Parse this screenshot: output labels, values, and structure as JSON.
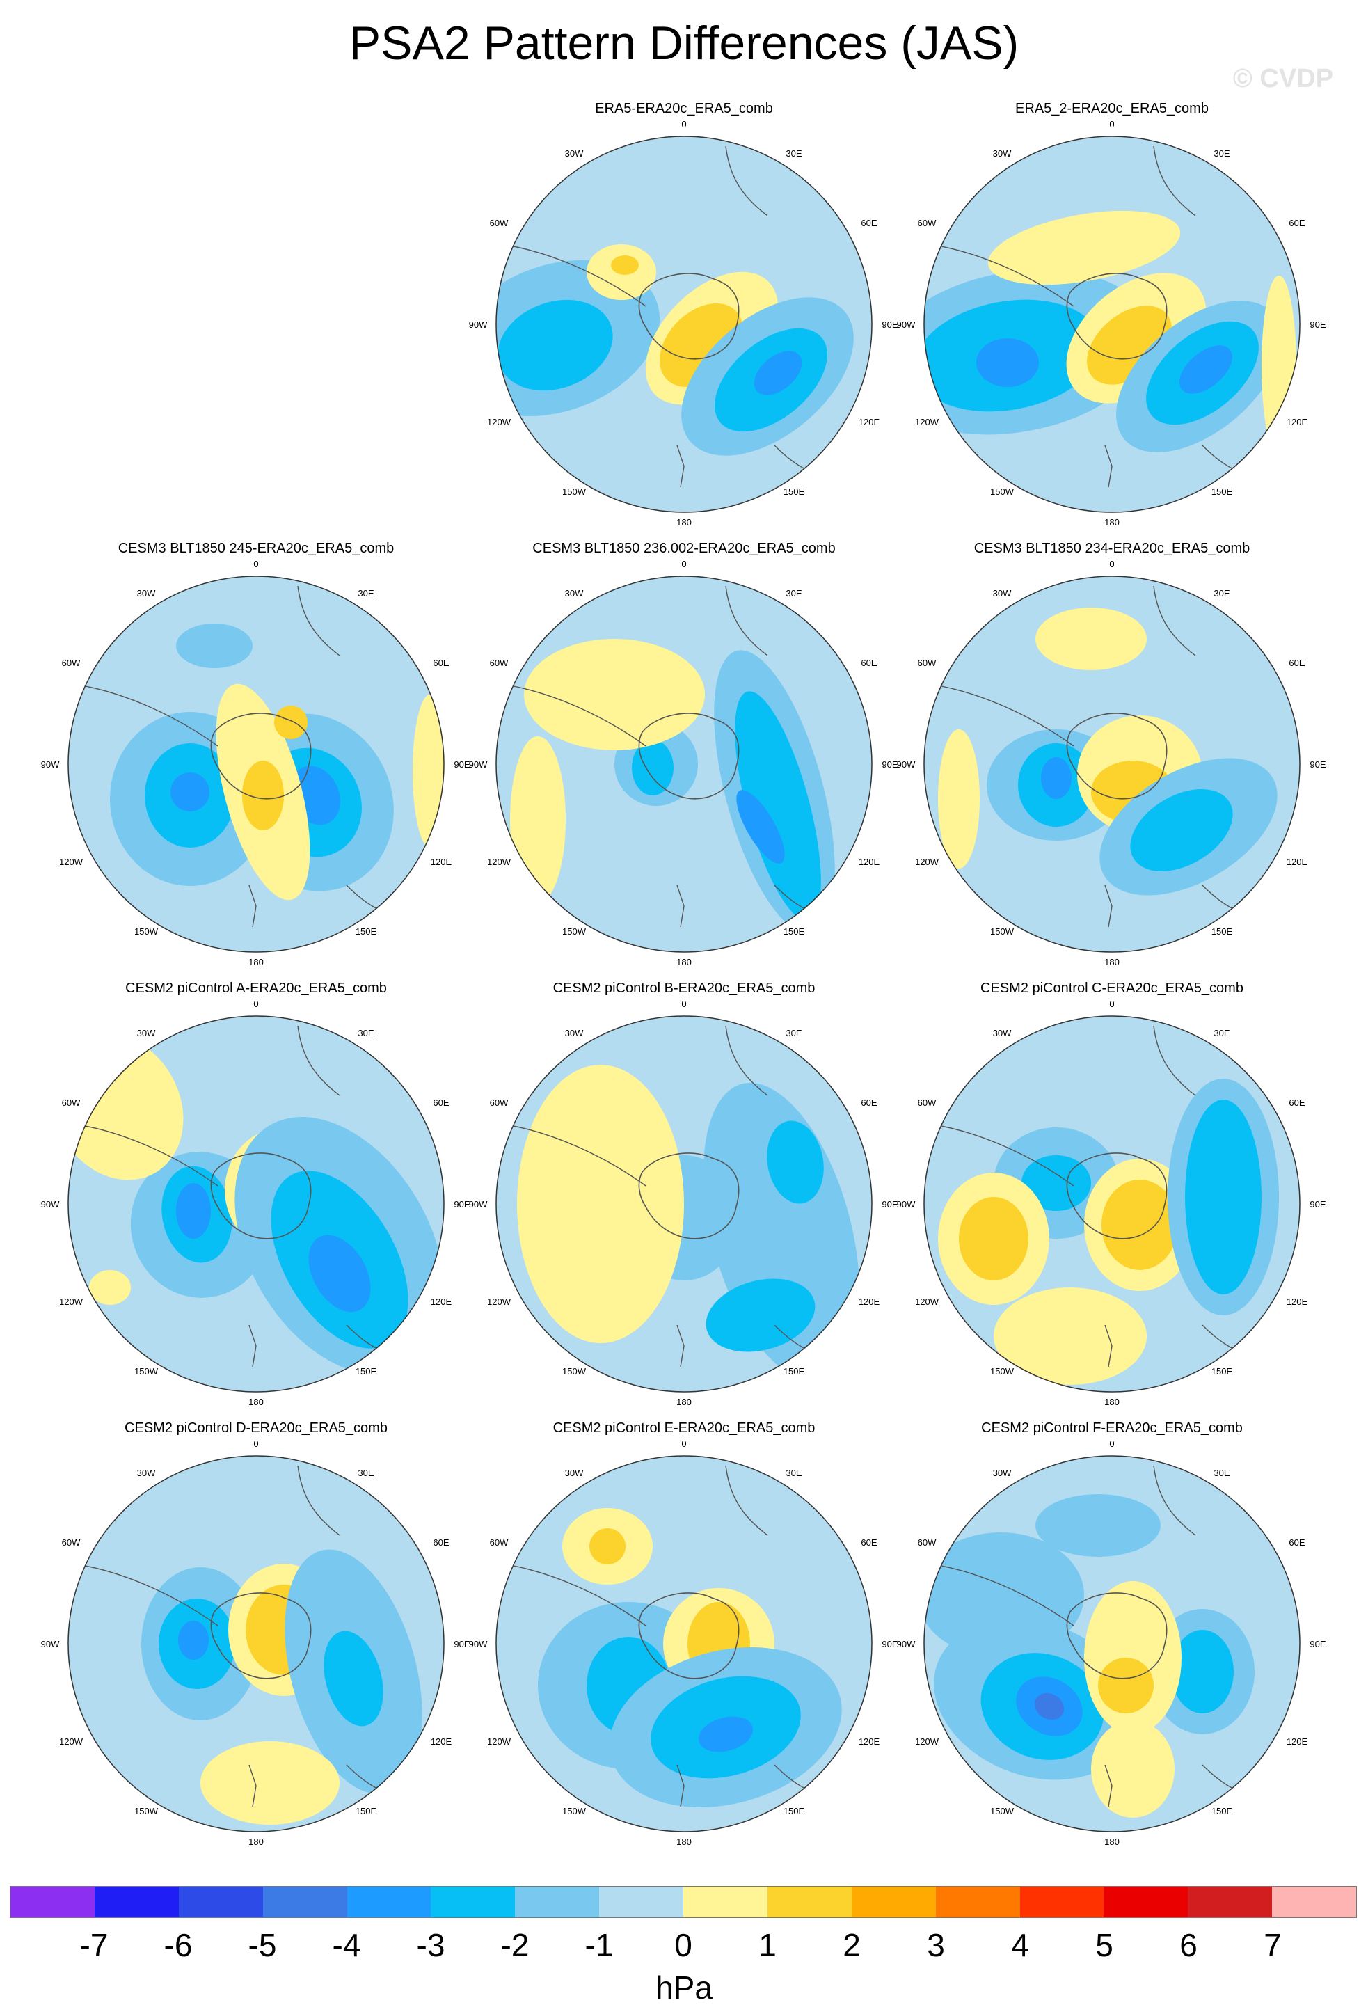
{
  "figure": {
    "title": "PSA2 Pattern Differences (JAS)",
    "watermark": "© CVDP",
    "units": "hPa"
  },
  "map_labels": {
    "top": "0",
    "top_left": "30W",
    "top_right": "30E",
    "upper_left": "60W",
    "upper_right": "60E",
    "left": "90W",
    "right": "90E",
    "lower_left": "120W",
    "lower_right": "120E",
    "bottom_left": "150W",
    "bottom_right": "150E",
    "bottom": "180"
  },
  "panels": [
    {
      "title": "ERA5-ERA20c_ERA5_comb"
    },
    {
      "title": "ERA5_2-ERA20c_ERA5_comb"
    },
    {
      "title": "CESM3 BLT1850 245-ERA20c_ERA5_comb"
    },
    {
      "title": "CESM3 BLT1850 236.002-ERA20c_ERA5_comb"
    },
    {
      "title": "CESM3 BLT1850 234-ERA20c_ERA5_comb"
    },
    {
      "title": "CESM2 piControl A-ERA20c_ERA5_comb"
    },
    {
      "title": "CESM2 piControl B-ERA20c_ERA5_comb"
    },
    {
      "title": "CESM2 piControl C-ERA20c_ERA5_comb"
    },
    {
      "title": "CESM2 piControl D-ERA20c_ERA5_comb"
    },
    {
      "title": "CESM2 piControl E-ERA20c_ERA5_comb"
    },
    {
      "title": "CESM2 piControl F-ERA20c_ERA5_comb"
    }
  ],
  "colorbar": {
    "labels": [
      "-7",
      "-6",
      "-5",
      "-4",
      "-3",
      "-2",
      "-1",
      "0",
      "1",
      "2",
      "3",
      "4",
      "5",
      "6",
      "7"
    ],
    "colors": [
      "#8c2ff0",
      "#1e1ef5",
      "#2d4be6",
      "#3c7ae6",
      "#1e9bff",
      "#08bff5",
      "#78c8f0",
      "#b4dcf0",
      "#fff596",
      "#fcd22d",
      "#ffaa00",
      "#ff7800",
      "#ff3200",
      "#eb0000",
      "#d21e1e",
      "#ffb4b4"
    ]
  }
}
